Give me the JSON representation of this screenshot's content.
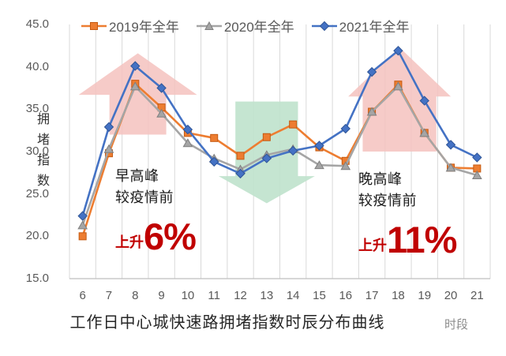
{
  "colors": {
    "series_2019": "#ED7D31",
    "series_2019_edge": "#C55A11",
    "series_2020": "#A5A5A5",
    "series_2020_edge": "#7F7F7F",
    "series_2021": "#4472C4",
    "series_2021_edge": "#2F5597",
    "gridline": "#D9D9D9",
    "axis_line": "#BFBFBF",
    "axis_text": "#595959",
    "arrow_pink": "#F5C2BE",
    "arrow_green": "#BFE2CC",
    "rise_red": "#C00000"
  },
  "chart_data": {
    "type": "line",
    "title": "工作日中心城快速路拥堵指数时辰分布曲线",
    "xlabel": "时段",
    "ylabel": "拥堵指数",
    "x": [
      6,
      7,
      8,
      9,
      10,
      11,
      12,
      13,
      14,
      15,
      16,
      17,
      18,
      19,
      20,
      21
    ],
    "series": [
      {
        "name": "2019年全年",
        "marker": "square",
        "color": "#ED7D31",
        "edge": "#C55A11",
        "values": [
          20.0,
          29.8,
          38.0,
          35.2,
          32.2,
          31.6,
          29.5,
          31.7,
          33.2,
          30.5,
          28.9,
          34.7,
          37.9,
          32.2,
          28.1,
          28.0
        ]
      },
      {
        "name": "2020年全年",
        "marker": "triangle",
        "color": "#A5A5A5",
        "edge": "#7F7F7F",
        "values": [
          21.3,
          30.3,
          37.7,
          34.5,
          31.0,
          29.2,
          27.9,
          29.6,
          30.3,
          28.4,
          28.3,
          34.7,
          37.7,
          32.2,
          28.1,
          27.2
        ]
      },
      {
        "name": "2021年全年",
        "marker": "diamond",
        "color": "#4472C4",
        "edge": "#2F5597",
        "values": [
          22.4,
          32.9,
          40.1,
          37.5,
          32.6,
          28.8,
          27.4,
          29.2,
          30.1,
          30.7,
          32.7,
          39.4,
          41.9,
          36.0,
          30.8,
          29.3
        ]
      }
    ],
    "ylim": [
      15,
      45
    ],
    "y_ticks": [
      "45.0",
      "40.0",
      "35.0",
      "30.0",
      "25.0",
      "20.0",
      "15.0"
    ],
    "grid": "vertical-only",
    "legend_position": "top",
    "arrows": [
      {
        "name": "morning-peak-up-arrow",
        "direction": "up",
        "center_hour": 8.1,
        "tip_value": 41.6,
        "head_base_value": 36.7,
        "tail_value": 32.0,
        "head_half_width_hours": 2.25,
        "body_half_width_hours": 1.08,
        "color": "#F5C2BE",
        "opacity": 0.85
      },
      {
        "name": "midday-down-arrow",
        "direction": "down",
        "center_hour": 13.0,
        "tip_value": 23.9,
        "head_base_value": 27.1,
        "tail_value": 35.9,
        "head_half_width_hours": 1.83,
        "body_half_width_hours": 1.19,
        "color": "#BFE2CC",
        "opacity": 0.9
      },
      {
        "name": "evening-peak-up-arrow",
        "direction": "up",
        "center_hour": 18.05,
        "tip_value": 42.3,
        "head_base_value": 36.5,
        "tail_value": 30.0,
        "head_half_width_hours": 1.95,
        "body_half_width_hours": 1.4,
        "color": "#F5C2BE",
        "opacity": 0.85
      }
    ],
    "annotations": {
      "morning": {
        "title": "早高峰",
        "subtitle": "较疫情前",
        "rise_prefix": "上升",
        "rise_value": "6%"
      },
      "evening": {
        "title": "晚高峰",
        "subtitle": "较疫情前",
        "rise_prefix": "上升",
        "rise_value": "11%"
      }
    }
  }
}
